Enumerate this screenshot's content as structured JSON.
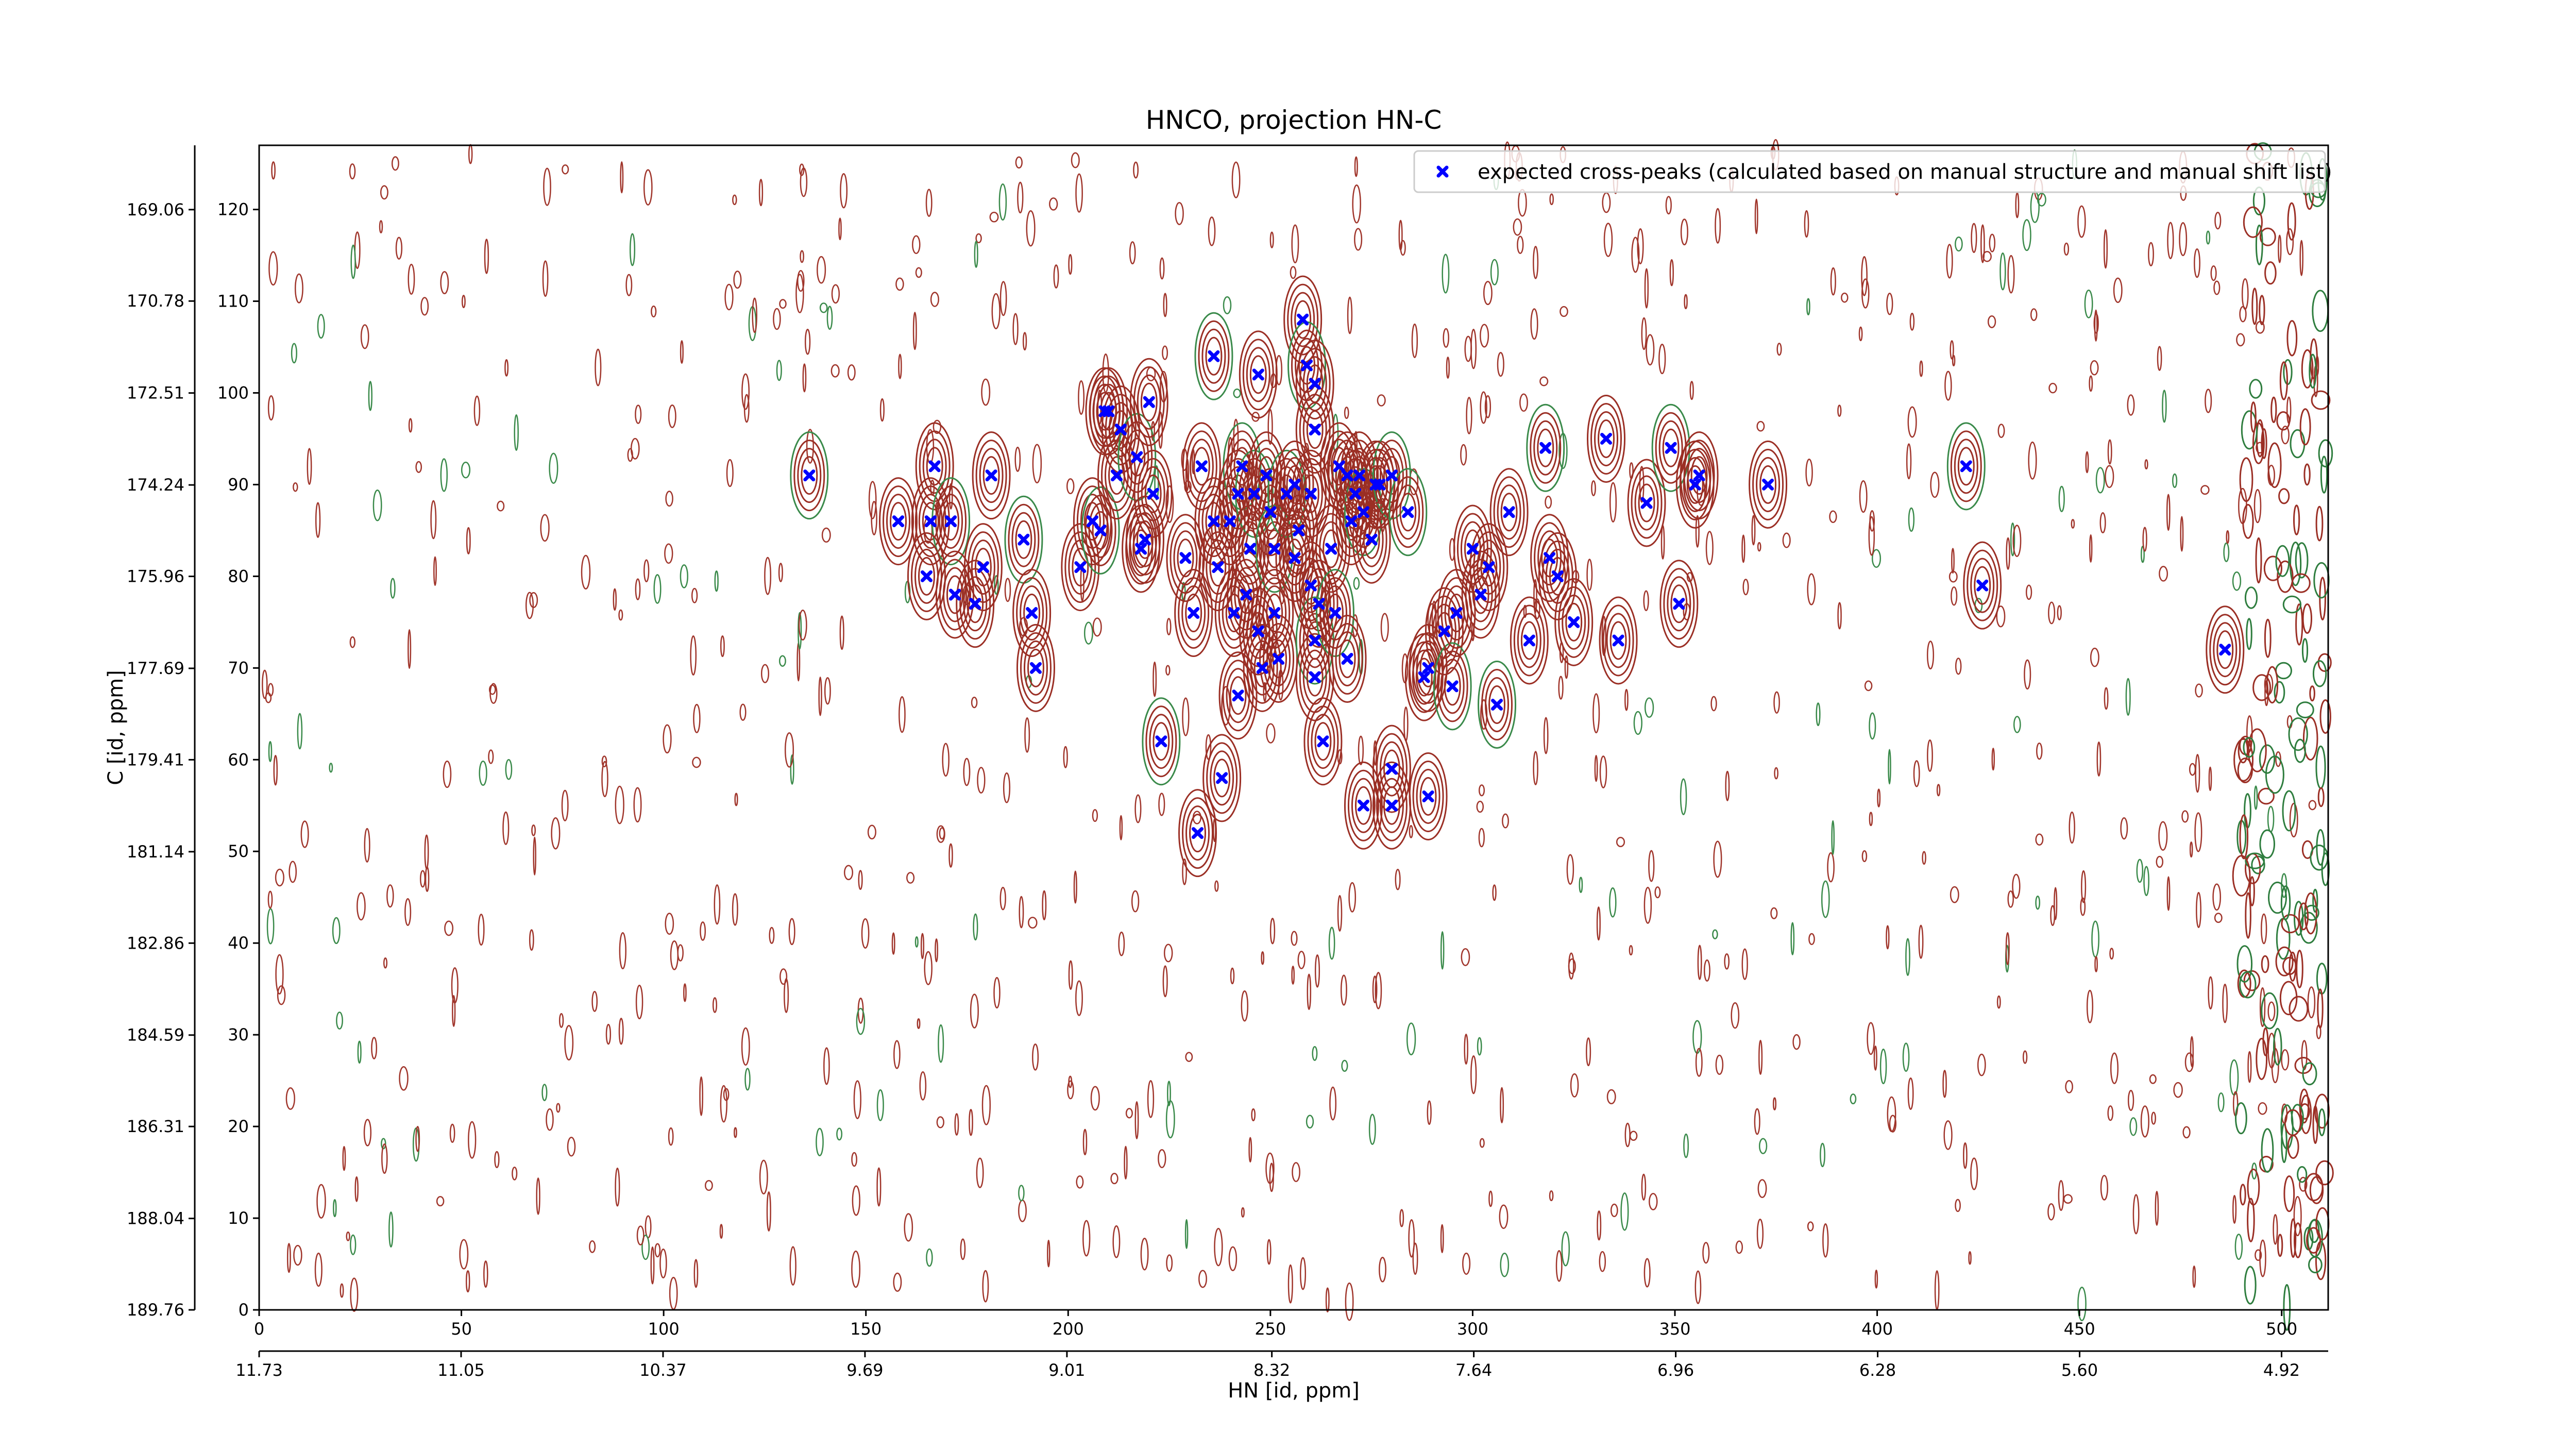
{
  "chart_data": {
    "type": "scatter",
    "title": "HNCO, projection HN-C",
    "xlabel": "HN [id, ppm]",
    "ylabel": "C [id, ppm]",
    "xlim": [
      0,
      511.5
    ],
    "xticks": [
      0,
      50,
      100,
      150,
      200,
      250,
      300,
      350,
      400,
      450,
      500
    ],
    "x2lim": [
      11.73,
      4.763
    ],
    "x2ticks": [
      11.73,
      11.05,
      10.37,
      9.69,
      9.01,
      8.32,
      7.64,
      6.96,
      6.28,
      {
        "value": 5.6,
        "label": "5.60"
      },
      4.92
    ],
    "ylim": [
      0,
      127
    ],
    "yticks": [
      0,
      10,
      20,
      30,
      40,
      50,
      60,
      70,
      80,
      90,
      100,
      110,
      120
    ],
    "y2lim": [
      189.76,
      167.85
    ],
    "y2ticks": [
      189.76,
      188.04,
      186.31,
      184.59,
      182.86,
      181.14,
      179.41,
      177.69,
      175.96,
      174.24,
      172.51,
      170.78,
      169.06
    ],
    "legend": "upper right",
    "x": [
      136,
      167,
      181,
      158,
      166,
      171,
      165,
      172,
      179,
      177,
      189,
      191,
      192,
      203,
      206,
      208,
      209,
      210,
      213,
      212,
      217,
      218,
      219,
      220,
      221,
      223,
      229,
      231,
      233,
      232,
      236,
      238,
      236,
      237,
      240,
      243,
      242,
      241,
      242,
      244,
      246,
      245,
      247,
      249,
      250,
      251,
      247,
      248,
      251,
      252,
      254,
      256,
      257,
      256,
      258,
      259,
      261,
      261,
      260,
      260,
      261,
      261,
      263,
      262,
      265,
      266,
      267,
      269,
      270,
      271,
      273,
      275,
      269,
      272,
      277,
      280,
      276,
      280,
      273,
      280,
      284,
      289,
      293,
      289,
      288,
      295,
      296,
      300,
      302,
      304,
      306,
      309,
      314,
      319,
      321,
      318,
      325,
      333,
      336,
      343,
      349,
      351,
      355,
      356,
      373,
      422,
      426,
      486
    ],
    "series": [
      {
        "name": "expected cross-peaks (calculated based on manual structure and manual shift list)",
        "color": "#0000ff",
        "values": [
          91,
          92,
          91,
          86,
          86,
          86,
          80,
          78,
          81,
          77,
          84,
          76,
          70,
          81,
          86,
          85,
          98,
          98,
          96,
          91,
          93,
          83,
          84,
          99,
          89,
          62,
          82,
          76,
          92,
          52,
          104,
          58,
          86,
          81,
          86,
          92,
          89,
          76,
          67,
          78,
          89,
          83,
          102,
          91,
          87,
          83,
          74,
          70,
          76,
          71,
          89,
          90,
          85,
          82,
          108,
          103,
          101,
          96,
          89,
          79,
          73,
          69,
          62,
          77,
          83,
          76,
          92,
          91,
          86,
          89,
          87,
          84,
          71,
          91,
          90,
          91,
          90,
          59,
          55,
          55,
          87,
          56,
          74,
          70,
          69,
          68,
          76,
          83,
          78,
          81,
          66,
          87,
          73,
          82,
          80,
          94,
          75,
          95,
          73,
          88,
          94,
          77,
          90,
          91,
          90,
          92,
          79,
          72
        ]
      }
    ]
  }
}
